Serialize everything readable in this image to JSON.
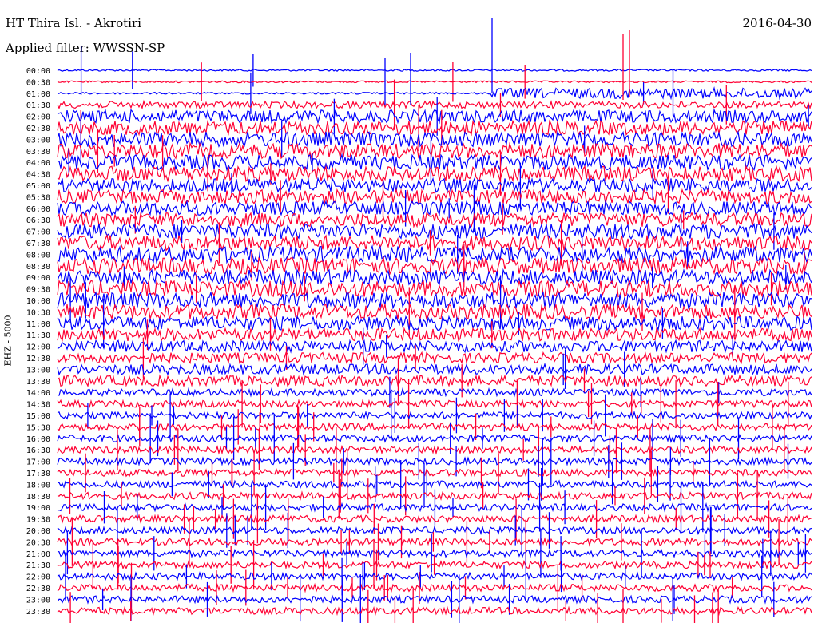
{
  "header": {
    "title": "HT Thira Isl. - Akrotiri",
    "filter": "Applied filter: WWSSN-SP",
    "date": "2016-04-30"
  },
  "chart_data": {
    "type": "line",
    "title": "HT Thira Isl. - Akrotiri",
    "subtitle": "Applied filter: WWSSN-SP",
    "date": "2016-04-30",
    "ylabel": "EHZ - 5000",
    "xlabel": "",
    "row_labels": [
      "00:00",
      "00:30",
      "01:00",
      "01:30",
      "02:00",
      "02:30",
      "03:00",
      "03:30",
      "04:00",
      "04:30",
      "05:00",
      "05:30",
      "06:00",
      "06:30",
      "07:00",
      "07:30",
      "08:00",
      "08:30",
      "09:00",
      "09:30",
      "10:00",
      "10:30",
      "11:00",
      "11:30",
      "12:00",
      "12:30",
      "13:00",
      "13:30",
      "14:00",
      "14:30",
      "15:00",
      "15:30",
      "16:00",
      "16:30",
      "17:00",
      "17:30",
      "18:00",
      "18:30",
      "19:00",
      "19:30",
      "20:00",
      "20:30",
      "21:00",
      "21:30",
      "22:00",
      "22:30",
      "23:00",
      "23:30"
    ],
    "series_colors": [
      "#0000ff",
      "#ff0033"
    ],
    "row_amplitude": [
      0.3,
      0.3,
      0.3,
      0.3,
      0.55,
      0.6,
      0.65,
      0.65,
      0.65,
      0.65,
      0.6,
      0.6,
      0.6,
      0.6,
      0.65,
      0.65,
      0.7,
      0.7,
      0.65,
      0.7,
      0.7,
      0.65,
      0.6,
      0.55,
      0.5,
      0.45,
      0.45,
      0.45,
      0.3,
      0.3,
      0.3,
      0.3,
      0.3,
      0.3,
      0.3,
      0.3,
      0.3,
      0.3,
      0.3,
      0.3,
      0.3,
      0.3,
      0.3,
      0.3,
      0.3,
      0.3,
      0.3,
      0.3
    ],
    "grid": false,
    "legend": "none"
  }
}
